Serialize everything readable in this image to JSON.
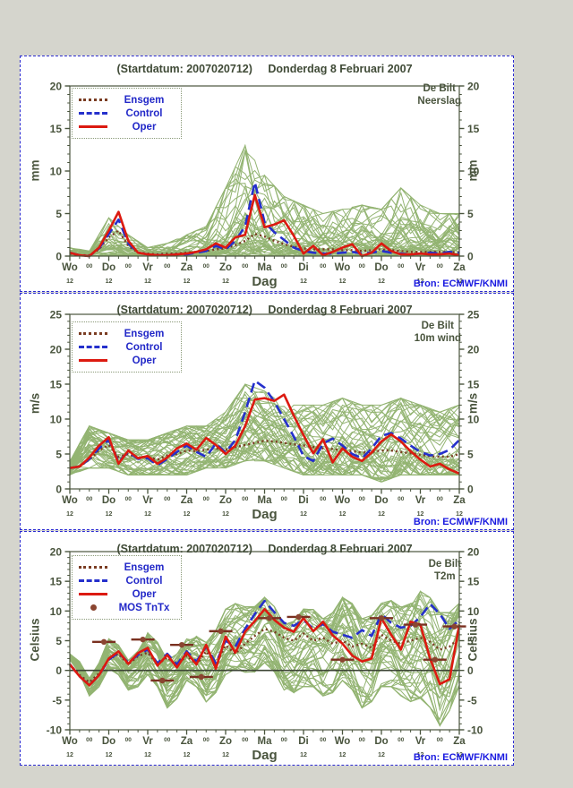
{
  "labels": {
    "bron": "Bron: ECMWF/KNMI",
    "axis_title": "Dag",
    "days": [
      "Wo",
      "Do",
      "Vr",
      "Za",
      "Zo",
      "Ma",
      "Di",
      "Wo",
      "Do",
      "Vr",
      "Za"
    ],
    "noon": "12",
    "midnight": "00"
  },
  "colors": {
    "background": "#d5d5cd",
    "panel_border": "#2a2ad0",
    "axis_text": "#49543d",
    "legend_text": "#2228c8",
    "bron_text": "#1a1ae0",
    "ensemble_green": "#93b472",
    "oper_red": "#dc1a10",
    "control_blue": "#2530cc",
    "ensgem_brown": "#7a3c22",
    "mos_brown": "#8a4530"
  },
  "chart_data": [
    {
      "type": "line",
      "title_startdatum": "(Startdatum: 2007020712)",
      "title_date": "Donderdag 8 Februari 2007",
      "station": "De Bilt",
      "variable": "Neerslag",
      "ylabel": "mm",
      "ylim": [
        0,
        20
      ],
      "ytick_step": 5,
      "x_hours_start": 0,
      "x_hours_end": 240,
      "x_step_hours": 6,
      "grid": false,
      "legend_position": "top-left",
      "clamp_zero": true,
      "zero_line": false,
      "series": [
        {
          "name": "Ensgem",
          "style": "dotted",
          "color": "#7a3c22",
          "values": [
            0.3,
            0.1,
            0.1,
            0.8,
            2.2,
            3.0,
            1.2,
            0.4,
            0.3,
            0.2,
            0.3,
            0.3,
            0.4,
            0.5,
            0.6,
            0.8,
            0.9,
            1.3,
            1.8,
            2.6,
            2.3,
            1.8,
            1.4,
            1.1,
            0.9,
            0.8,
            0.8,
            0.8,
            0.7,
            0.7,
            0.6,
            0.7,
            0.8,
            0.7,
            0.6,
            0.5,
            0.5,
            0.5,
            0.5,
            0.5,
            0.4
          ]
        },
        {
          "name": "Control",
          "style": "dashed",
          "color": "#2530cc",
          "values": [
            0.4,
            0.1,
            0.0,
            0.9,
            2.6,
            4.3,
            1.5,
            0.4,
            0.2,
            0.1,
            0.1,
            0.2,
            0.2,
            0.4,
            0.6,
            1.2,
            0.8,
            1.8,
            3.5,
            8.7,
            4.0,
            2.8,
            1.9,
            1.0,
            0.6,
            0.4,
            0.3,
            0.3,
            0.4,
            0.5,
            0.3,
            0.4,
            0.6,
            0.4,
            0.3,
            0.2,
            0.3,
            0.4,
            0.3,
            0.5,
            0.4
          ]
        },
        {
          "name": "Oper",
          "style": "solid",
          "color": "#dc1a10",
          "values": [
            0.4,
            0.1,
            0.0,
            1.0,
            3.0,
            5.2,
            1.8,
            0.4,
            0.2,
            0.1,
            0.1,
            0.2,
            0.3,
            0.5,
            0.8,
            1.5,
            1.0,
            2.2,
            2.5,
            7.2,
            3.4,
            3.7,
            4.2,
            2.4,
            0.3,
            1.2,
            0.1,
            0.5,
            1.0,
            1.4,
            0.0,
            0.4,
            1.5,
            0.6,
            0.2,
            0.2,
            0.3,
            0.2,
            0.2,
            0.3,
            0.1
          ]
        }
      ],
      "ensemble": {
        "count": 50,
        "color": "#93b472",
        "bias": "low",
        "diurnal_amp": 0,
        "env_min_12h": [
          0,
          0,
          0,
          0,
          0,
          0,
          0,
          0,
          0,
          0,
          0,
          0,
          0,
          0,
          0,
          0,
          0,
          0,
          0,
          0,
          0
        ],
        "env_max_12h": [
          1.0,
          0.6,
          4.5,
          2.5,
          1.0,
          1.5,
          2.5,
          3.5,
          8.0,
          13.0,
          9.5,
          7.0,
          6.0,
          5.0,
          5.5,
          6.0,
          5.5,
          8.0,
          6.0,
          5.0,
          5.0
        ]
      }
    },
    {
      "type": "line",
      "title_startdatum": "(Startdatum: 2007020712)",
      "title_date": "Donderdag 8 Februari 2007",
      "station": "De Bilt",
      "variable": "10m wind",
      "ylabel": "m/s",
      "ylim": [
        0,
        25
      ],
      "ytick_step": 5,
      "x_hours_start": 0,
      "x_hours_end": 240,
      "x_step_hours": 6,
      "grid": false,
      "legend_position": "top-left",
      "clamp_zero": true,
      "zero_line": false,
      "series": [
        {
          "name": "Ensgem",
          "style": "dotted",
          "color": "#7a3c22",
          "values": [
            3.0,
            3.2,
            4.2,
            5.5,
            6.3,
            4.6,
            5.0,
            4.4,
            4.6,
            4.2,
            4.8,
            5.0,
            5.5,
            5.4,
            5.6,
            5.8,
            5.6,
            6.0,
            6.3,
            6.6,
            6.9,
            6.8,
            6.6,
            6.4,
            6.2,
            6.0,
            5.8,
            5.7,
            5.5,
            5.4,
            5.2,
            5.3,
            5.5,
            5.5,
            5.3,
            5.1,
            4.9,
            4.7,
            4.6,
            4.6,
            5.0
          ]
        },
        {
          "name": "Control",
          "style": "dashed",
          "color": "#2530cc",
          "values": [
            3.0,
            3.2,
            4.3,
            5.8,
            7.0,
            3.9,
            5.3,
            4.3,
            4.4,
            3.4,
            4.3,
            5.3,
            6.2,
            5.3,
            4.6,
            6.5,
            5.2,
            7.0,
            11.0,
            15.5,
            14.5,
            12.5,
            10.0,
            7.5,
            4.7,
            4.0,
            6.5,
            7.2,
            6.2,
            5.0,
            4.4,
            5.8,
            7.6,
            8.0,
            7.2,
            6.2,
            5.3,
            4.8,
            5.0,
            5.6,
            7.0
          ]
        },
        {
          "name": "Oper",
          "style": "solid",
          "color": "#dc1a10",
          "values": [
            3.0,
            3.2,
            4.5,
            6.2,
            7.4,
            3.6,
            5.5,
            4.4,
            4.7,
            3.6,
            4.5,
            5.8,
            6.5,
            5.6,
            7.3,
            6.3,
            5.0,
            6.2,
            9.0,
            12.8,
            13.0,
            12.6,
            13.5,
            10.5,
            7.7,
            5.1,
            7.1,
            3.8,
            5.8,
            4.6,
            4.0,
            5.2,
            6.8,
            7.8,
            6.8,
            5.4,
            4.2,
            3.2,
            3.6,
            2.8,
            2.2
          ]
        }
      ],
      "ensemble": {
        "count": 50,
        "color": "#93b472",
        "bias": "mid",
        "diurnal_amp": 0,
        "env_min_12h": [
          2,
          3,
          3,
          2,
          2,
          2,
          2,
          3,
          3,
          4,
          4,
          3,
          2,
          2,
          2,
          2,
          1,
          2,
          2,
          2,
          2
        ],
        "env_max_12h": [
          4,
          9,
          8,
          7,
          7,
          8,
          9,
          9,
          11,
          15,
          14,
          12,
          12,
          12,
          13,
          12,
          12,
          13,
          12,
          11,
          12
        ]
      }
    },
    {
      "type": "line",
      "title_startdatum": "(Startdatum: 2007020712)",
      "title_date": "Donderdag 8 Februari 2007",
      "station": "De Bilt",
      "variable": "T2m",
      "ylabel": "Celsius",
      "ylim": [
        -10,
        20
      ],
      "ytick_step": 5,
      "x_hours_start": 0,
      "x_hours_end": 240,
      "x_step_hours": 6,
      "grid": false,
      "legend_position": "top-left",
      "clamp_zero": false,
      "zero_line": true,
      "series": [
        {
          "name": "Ensgem",
          "style": "dotted",
          "color": "#7a3c22",
          "values": [
            1.0,
            -0.8,
            -2.0,
            -0.5,
            1.8,
            2.8,
            1.0,
            2.4,
            3.0,
            1.0,
            2.2,
            0.8,
            2.5,
            1.0,
            3.2,
            1.0,
            4.2,
            2.8,
            4.5,
            5.8,
            7.0,
            6.5,
            5.5,
            5.0,
            6.2,
            5.0,
            5.5,
            4.5,
            5.0,
            4.0,
            4.5,
            3.8,
            6.0,
            5.0,
            4.5,
            5.0,
            5.5,
            4.8,
            3.5,
            4.0,
            5.5
          ]
        },
        {
          "name": "Control",
          "style": "dashed",
          "color": "#2530cc",
          "values": [
            1.0,
            -1.0,
            -2.5,
            -0.8,
            1.8,
            3.0,
            1.3,
            2.6,
            3.5,
            1.2,
            2.8,
            1.0,
            3.2,
            1.5,
            4.0,
            1.2,
            5.0,
            4.0,
            7.0,
            9.5,
            11.7,
            9.8,
            8.0,
            7.5,
            8.5,
            7.0,
            7.8,
            6.5,
            6.0,
            5.5,
            6.8,
            5.8,
            9.5,
            8.0,
            7.2,
            7.5,
            9.0,
            11.2,
            9.5,
            7.0,
            8.5
          ]
        },
        {
          "name": "Oper",
          "style": "solid",
          "color": "#dc1a10",
          "values": [
            1.0,
            -1.0,
            -2.5,
            -0.8,
            2.0,
            3.2,
            1.1,
            2.9,
            3.8,
            0.8,
            2.6,
            0.5,
            3.0,
            1.0,
            4.3,
            0.3,
            5.7,
            3.0,
            6.5,
            8.3,
            10.3,
            8.5,
            7.2,
            6.5,
            8.8,
            6.6,
            8.2,
            5.9,
            4.5,
            2.5,
            1.5,
            2.0,
            8.8,
            6.0,
            3.5,
            8.2,
            7.7,
            2.0,
            -2.3,
            -1.5,
            7.7
          ]
        }
      ],
      "points_series": {
        "name": "MOS TnTx",
        "color": "#8a4530",
        "bar_color": "#7a3020",
        "points": [
          [
            21,
            4.8
          ],
          [
            45,
            5.2
          ],
          [
            57,
            -1.7
          ],
          [
            69,
            4.3
          ],
          [
            81,
            -1.1
          ],
          [
            93,
            6.6
          ],
          [
            123,
            8.8
          ],
          [
            141,
            9.0
          ],
          [
            168,
            1.8
          ],
          [
            192,
            8.8
          ],
          [
            213,
            7.7
          ],
          [
            225,
            1.8
          ],
          [
            237,
            7.4
          ]
        ]
      },
      "ensemble": {
        "count": 50,
        "color": "#93b472",
        "bias": "mid",
        "diurnal_amp": 1.5,
        "env_min_12h": [
          0.5,
          -3,
          -1,
          -2,
          -2,
          -5,
          -3,
          -4,
          -2,
          1,
          0,
          -2,
          -4,
          -3,
          -3,
          -5,
          -4,
          -3,
          -6,
          -8,
          -4
        ],
        "env_max_12h": [
          1.5,
          0,
          4,
          3,
          5,
          3,
          4,
          6,
          9,
          12,
          11,
          9,
          9,
          10,
          11,
          10,
          10,
          12,
          12,
          11,
          10
        ]
      }
    }
  ]
}
